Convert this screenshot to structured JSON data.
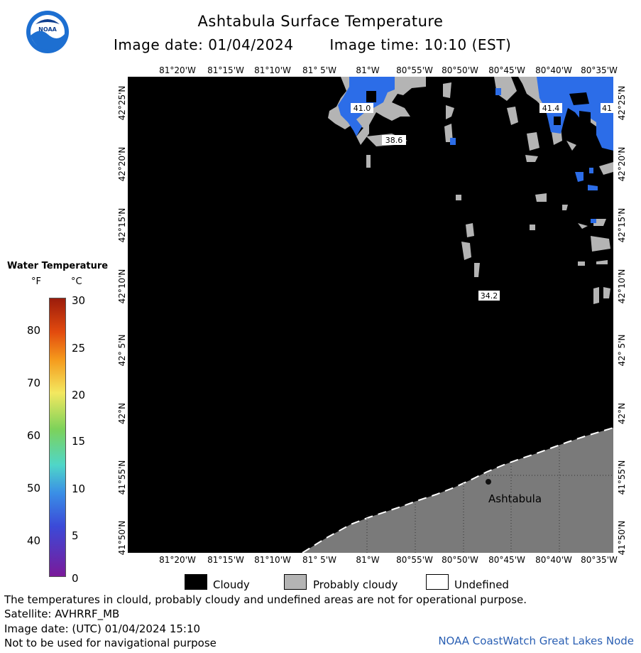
{
  "header": {
    "title": "Ashtabula Surface Temperature",
    "image_date": "Image date: 01/04/2024",
    "image_time": "Image time: 10:10 (EST)"
  },
  "map": {
    "lon_labels": [
      "81°20'W",
      "81°15'W",
      "81°10'W",
      "81° 5'W",
      "81°W",
      "80°55'W",
      "80°50'W",
      "80°45'W",
      "80°40'W",
      "80°35'W"
    ],
    "lat_labels": [
      "42°25'N",
      "42°20'N",
      "42°15'N",
      "42°10'N",
      "42° 5'N",
      "42°N",
      "41°55'N",
      "41°50'N"
    ],
    "temp_labels": [
      "41.0",
      "38.6",
      "41.4",
      "41",
      "34.2"
    ],
    "place_label": "Ashtabula",
    "colors": {
      "cloud": "#000000",
      "probably_cloudy": "#b4b4b4",
      "land": "#7a7a7a",
      "water_41F": "#2c6de8",
      "undefined": "#ffffff"
    }
  },
  "legend": {
    "title": "Water Temperature",
    "unit_f": "°F",
    "unit_c": "°C",
    "fahrenheit_ticks": [
      "80",
      "70",
      "60",
      "50",
      "40"
    ],
    "celsius_ticks": [
      "30",
      "25",
      "20",
      "15",
      "10",
      "5",
      "0"
    ],
    "gradient_colors": [
      "#9b1c0c",
      "#e24a0e",
      "#f59a1c",
      "#f3e860",
      "#7dd25a",
      "#4fd6c8",
      "#3a8fe6",
      "#3b4ad8",
      "#7a1a9a"
    ]
  },
  "key": {
    "cloudy": "Cloudy",
    "probably_cloudy": "Probably cloudy",
    "undefined": "Undefined"
  },
  "footer": {
    "line1": "The temperatures in clould, probably cloudy and undefined areas are not for operational purpose.",
    "line2": "Satellite: AVHRRF_MB",
    "line3": "Image date: (UTC) 01/04/2024  15:10",
    "line4": "Not to be used for navigational purpose",
    "credit": "NOAA CoastWatch Great Lakes Node"
  }
}
